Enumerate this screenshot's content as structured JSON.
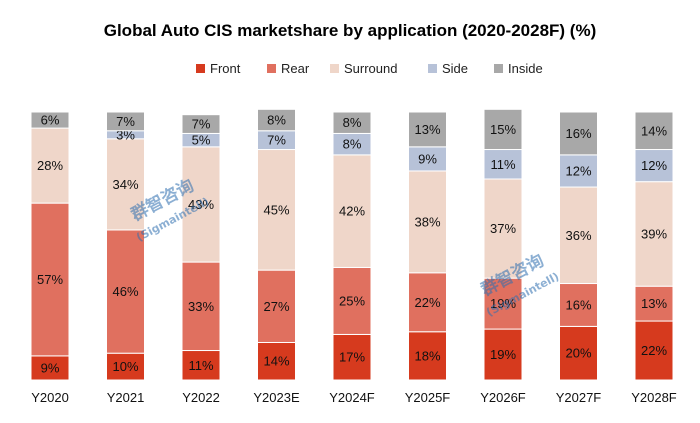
{
  "chart_data": {
    "type": "bar",
    "stacked": true,
    "title": "Global Auto CIS marketshare by application (2020-2028F) (%)",
    "xlabel": "",
    "ylabel": "",
    "ylim": [
      0,
      100
    ],
    "legend_position": "top",
    "categories": [
      "Y2020",
      "Y2021",
      "Y2022",
      "Y2023E",
      "Y2024F",
      "Y2025F",
      "Y2026F",
      "Y2027F",
      "Y2028F"
    ],
    "series": [
      {
        "name": "Front",
        "color": "#d63a1e",
        "values": [
          9,
          10,
          11,
          14,
          17,
          18,
          19,
          20,
          22
        ]
      },
      {
        "name": "Rear",
        "color": "#e0705f",
        "values": [
          57,
          46,
          33,
          27,
          25,
          22,
          19,
          16,
          13
        ]
      },
      {
        "name": "Surround",
        "color": "#efd6c9",
        "values": [
          28,
          34,
          43,
          45,
          42,
          38,
          37,
          36,
          39
        ]
      },
      {
        "name": "Side",
        "color": "#b7c2d8",
        "values": [
          0,
          3,
          5,
          7,
          8,
          9,
          11,
          12,
          12
        ]
      },
      {
        "name": "Inside",
        "color": "#a8a8a8",
        "values": [
          6,
          7,
          7,
          8,
          8,
          13,
          15,
          16,
          14
        ]
      }
    ]
  },
  "watermarks": [
    {
      "cn": "群智咨询",
      "en": "(Sigmaintell)"
    },
    {
      "cn": "群智咨询",
      "en": "(Sigmaintell)"
    }
  ]
}
